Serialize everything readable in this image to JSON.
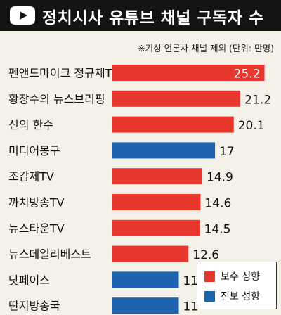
{
  "header": {
    "title": "정치시사 유튜브 채널 구독자 수",
    "logo_icon": "youtube-play-icon"
  },
  "note": "※기성 언론사 채널 제외  (단위: 만명)",
  "colors": {
    "conservative": "#e8382e",
    "progressive": "#1d63b0",
    "background": "#f3f1e8",
    "header_bg": "#141414"
  },
  "legend": {
    "conservative_label": "보수 성향",
    "progressive_label": "진보 성향"
  },
  "chart_data": {
    "type": "bar",
    "orientation": "horizontal",
    "unit": "만명",
    "xlim": [
      0,
      27
    ],
    "categories": [
      "펜앤드마이크 정규재TV",
      "황장수의 뉴스브리핑",
      "신의 한수",
      "미디어몽구",
      "조갑제TV",
      "까치방송TV",
      "뉴스타운TV",
      "뉴스데일리베스트",
      "닷페이스",
      "딴지방송국"
    ],
    "values": [
      25.2,
      21.2,
      20.1,
      17,
      14.9,
      14.6,
      14.5,
      12.6,
      11,
      11
    ],
    "value_labels": [
      "25.2",
      "21.2",
      "20.1",
      "17",
      "14.9",
      "14.6",
      "14.5",
      "12.6",
      "11",
      "11"
    ],
    "leaning": [
      "conservative",
      "conservative",
      "conservative",
      "progressive",
      "conservative",
      "conservative",
      "conservative",
      "conservative",
      "progressive",
      "progressive"
    ]
  }
}
